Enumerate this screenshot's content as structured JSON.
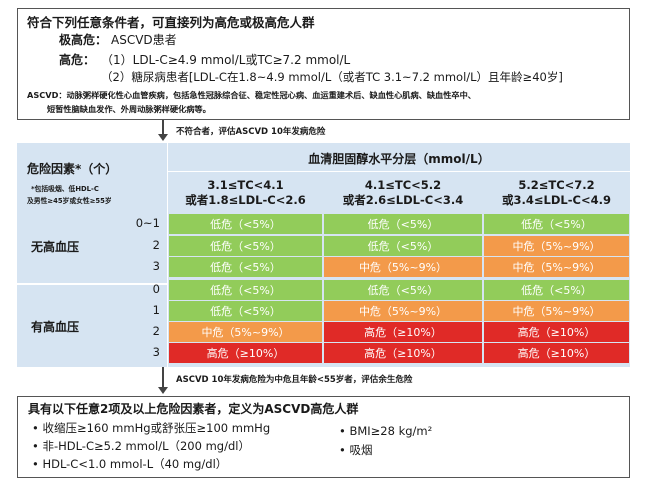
{
  "top": {
    "heading": "符合下列任意条件者，可直接列为高危或极高危人群",
    "very_high_label": "极高危：",
    "very_high_text": "ASCVD患者",
    "high_label": "高危：",
    "high_item1": "（1）LDL-C≥4.9 mmol/L或TC≥7.2 mmol/L",
    "high_item2": "（2）糖尿病患者[LDL-C在1.8~4.9 mmol/L（或者TC 3.1~7.2 mmol/L）且年龄≥40岁]",
    "ascvd_note_line1": "ASCVD：动脉粥样硬化性心血管疾病，包括急性冠脉综合征、稳定性冠心病、血运重建术后、缺血性心肌病、缺血性卒中、",
    "ascvd_note_line2": "短暂性脑缺血发作、外周动脉粥样硬化病等。"
  },
  "arrow1_text": "不符合者，评估ASCVD 10年发病危险",
  "table": {
    "risk_factor_header": "危险因素*（个）",
    "risk_factor_note1": "*包括吸烟、低HDL-C",
    "risk_factor_note2": "及男性≥45岁或女性≥55岁",
    "cholesterol_header": "血清胆固醇水平分层（mmol/L）",
    "columns": [
      {
        "line1": "3.1≤TC<4.1",
        "line2": "或者1.8≤LDL-C<2.6"
      },
      {
        "line1": "4.1≤TC<5.2",
        "line2": "或者2.6≤LDL-C<3.4"
      },
      {
        "line1": "5.2≤TC<7.2",
        "line2": "或3.4≤LDL-C<4.9"
      }
    ],
    "groups": [
      {
        "label": "无高血压",
        "rows": [
          {
            "count": "0~1",
            "cells": [
              {
                "text": "低危（<5%）",
                "level": "low"
              },
              {
                "text": "低危（<5%）",
                "level": "low"
              },
              {
                "text": "低危（<5%）",
                "level": "low"
              }
            ]
          },
          {
            "count": "2",
            "cells": [
              {
                "text": "低危（<5%）",
                "level": "low"
              },
              {
                "text": "低危（<5%）",
                "level": "low"
              },
              {
                "text": "中危（5%~9%）",
                "level": "mid"
              }
            ]
          },
          {
            "count": "3",
            "cells": [
              {
                "text": "低危（<5%）",
                "level": "low"
              },
              {
                "text": "中危（5%~9%）",
                "level": "mid"
              },
              {
                "text": "中危（5%~9%）",
                "level": "mid"
              }
            ]
          }
        ]
      },
      {
        "label": "有高血压",
        "rows": [
          {
            "count": "0",
            "cells": [
              {
                "text": "低危（<5%）",
                "level": "low"
              },
              {
                "text": "低危（<5%）",
                "level": "low"
              },
              {
                "text": "低危（<5%）",
                "level": "low"
              }
            ]
          },
          {
            "count": "1",
            "cells": [
              {
                "text": "低危（<5%）",
                "level": "low"
              },
              {
                "text": "中危（5%~9%）",
                "level": "mid"
              },
              {
                "text": "中危（5%~9%）",
                "level": "mid"
              }
            ]
          },
          {
            "count": "2",
            "cells": [
              {
                "text": "中危（5%~9%）",
                "level": "mid"
              },
              {
                "text": "高危（≥10%）",
                "level": "high"
              },
              {
                "text": "高危（≥10%）",
                "level": "high"
              }
            ]
          },
          {
            "count": "3",
            "cells": [
              {
                "text": "高危（≥10%）",
                "level": "high"
              },
              {
                "text": "高危（≥10%）",
                "level": "high"
              },
              {
                "text": "高危（≥10%）",
                "level": "high"
              }
            ]
          }
        ]
      }
    ]
  },
  "arrow2_text": "ASCVD 10年发病危险为中危且年龄<55岁者，评估余生危险",
  "bottom": {
    "heading": "具有以下任意2项及以上危险因素者，定义为ASCVD高危人群",
    "item1": "• 收缩压≥160 mmHg或舒张压≥100 mmHg",
    "item2": "• 非-HDL-C≥5.2 mmol/L（200 mg/dl）",
    "item3": "• HDL-C<1.0 mmol-L（40 mg/dl）",
    "item4": "• BMI≥28 kg/m²",
    "item5": "• 吸烟"
  },
  "colors": {
    "low": "#92cc5a",
    "mid": "#f39a4a",
    "high": "#e02a27",
    "table_bg": "#d6e4f2"
  }
}
